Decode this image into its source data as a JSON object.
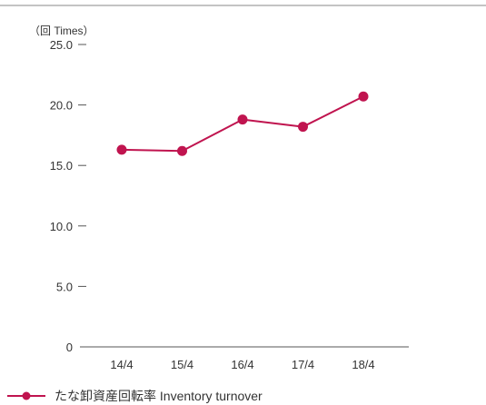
{
  "chart_data": {
    "type": "line",
    "unit_label": "（回 Times）",
    "categories": [
      "14/4",
      "15/4",
      "16/4",
      "17/4",
      "18/4"
    ],
    "series": [
      {
        "name": "たな卸資産回転率 Inventory turnover",
        "color": "#c0144f",
        "values": [
          16.3,
          16.2,
          18.8,
          18.2,
          20.7
        ]
      }
    ],
    "y_ticks": [
      "25.0",
      "20.0",
      "15.0",
      "10.0",
      "5.0",
      "0"
    ],
    "ylim": [
      0,
      25
    ],
    "grid": false,
    "legend_position": "bottom-left"
  },
  "colors": {
    "axis": "#555555",
    "text": "#333333",
    "rule": "#888888"
  }
}
